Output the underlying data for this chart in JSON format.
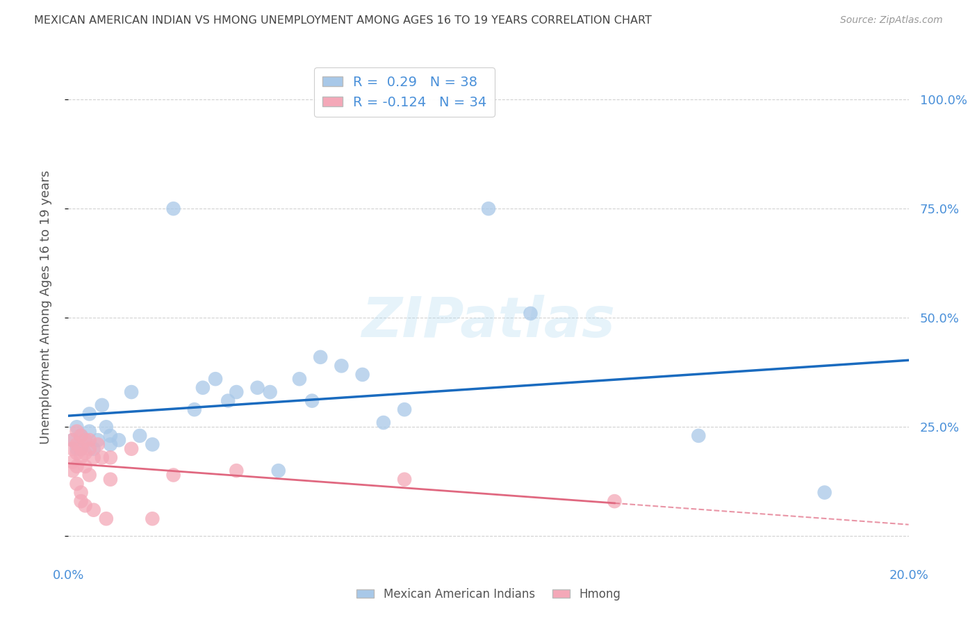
{
  "title": "MEXICAN AMERICAN INDIAN VS HMONG UNEMPLOYMENT AMONG AGES 16 TO 19 YEARS CORRELATION CHART",
  "source": "Source: ZipAtlas.com",
  "ylabel": "Unemployment Among Ages 16 to 19 years",
  "xlim": [
    0.0,
    0.2
  ],
  "ylim": [
    -0.05,
    1.1
  ],
  "yticks": [
    0.0,
    0.25,
    0.5,
    0.75,
    1.0
  ],
  "ytick_labels": [
    "",
    "25.0%",
    "50.0%",
    "75.0%",
    "100.0%"
  ],
  "xticks": [
    0.0,
    0.05,
    0.1,
    0.15,
    0.2
  ],
  "xtick_labels": [
    "0.0%",
    "",
    "",
    "",
    "20.0%"
  ],
  "blue_R": 0.29,
  "blue_N": 38,
  "pink_R": -0.124,
  "pink_N": 34,
  "blue_color": "#a8c8e8",
  "pink_color": "#f4a8b8",
  "blue_line_color": "#1a6bbf",
  "pink_line_color": "#e06880",
  "blue_scatter": [
    [
      0.001,
      0.22
    ],
    [
      0.002,
      0.2
    ],
    [
      0.002,
      0.25
    ],
    [
      0.003,
      0.23
    ],
    [
      0.003,
      0.2
    ],
    [
      0.004,
      0.22
    ],
    [
      0.005,
      0.28
    ],
    [
      0.005,
      0.24
    ],
    [
      0.006,
      0.2
    ],
    [
      0.007,
      0.22
    ],
    [
      0.008,
      0.3
    ],
    [
      0.009,
      0.25
    ],
    [
      0.01,
      0.23
    ],
    [
      0.01,
      0.21
    ],
    [
      0.012,
      0.22
    ],
    [
      0.015,
      0.33
    ],
    [
      0.017,
      0.23
    ],
    [
      0.02,
      0.21
    ],
    [
      0.025,
      0.75
    ],
    [
      0.03,
      0.29
    ],
    [
      0.032,
      0.34
    ],
    [
      0.035,
      0.36
    ],
    [
      0.038,
      0.31
    ],
    [
      0.04,
      0.33
    ],
    [
      0.045,
      0.34
    ],
    [
      0.048,
      0.33
    ],
    [
      0.05,
      0.15
    ],
    [
      0.055,
      0.36
    ],
    [
      0.058,
      0.31
    ],
    [
      0.06,
      0.41
    ],
    [
      0.065,
      0.39
    ],
    [
      0.07,
      0.37
    ],
    [
      0.075,
      0.26
    ],
    [
      0.08,
      0.29
    ],
    [
      0.1,
      0.75
    ],
    [
      0.11,
      0.51
    ],
    [
      0.15,
      0.23
    ],
    [
      0.18,
      0.1
    ]
  ],
  "pink_scatter": [
    [
      0.001,
      0.22
    ],
    [
      0.001,
      0.2
    ],
    [
      0.001,
      0.17
    ],
    [
      0.001,
      0.15
    ],
    [
      0.002,
      0.24
    ],
    [
      0.002,
      0.21
    ],
    [
      0.002,
      0.19
    ],
    [
      0.002,
      0.16
    ],
    [
      0.002,
      0.12
    ],
    [
      0.003,
      0.23
    ],
    [
      0.003,
      0.2
    ],
    [
      0.003,
      0.18
    ],
    [
      0.003,
      0.1
    ],
    [
      0.003,
      0.08
    ],
    [
      0.004,
      0.22
    ],
    [
      0.004,
      0.19
    ],
    [
      0.004,
      0.16
    ],
    [
      0.004,
      0.07
    ],
    [
      0.005,
      0.22
    ],
    [
      0.005,
      0.2
    ],
    [
      0.005,
      0.14
    ],
    [
      0.006,
      0.18
    ],
    [
      0.006,
      0.06
    ],
    [
      0.007,
      0.21
    ],
    [
      0.008,
      0.18
    ],
    [
      0.009,
      0.04
    ],
    [
      0.01,
      0.18
    ],
    [
      0.01,
      0.13
    ],
    [
      0.015,
      0.2
    ],
    [
      0.02,
      0.04
    ],
    [
      0.025,
      0.14
    ],
    [
      0.04,
      0.15
    ],
    [
      0.08,
      0.13
    ],
    [
      0.13,
      0.08
    ]
  ],
  "watermark_text": "ZIPatlas",
  "background_color": "#ffffff",
  "grid_color": "#cccccc",
  "title_color": "#444444",
  "axis_label_color": "#555555",
  "tick_color": "#4a90d9",
  "legend_label1": "Mexican American Indians",
  "legend_label2": "Hmong"
}
